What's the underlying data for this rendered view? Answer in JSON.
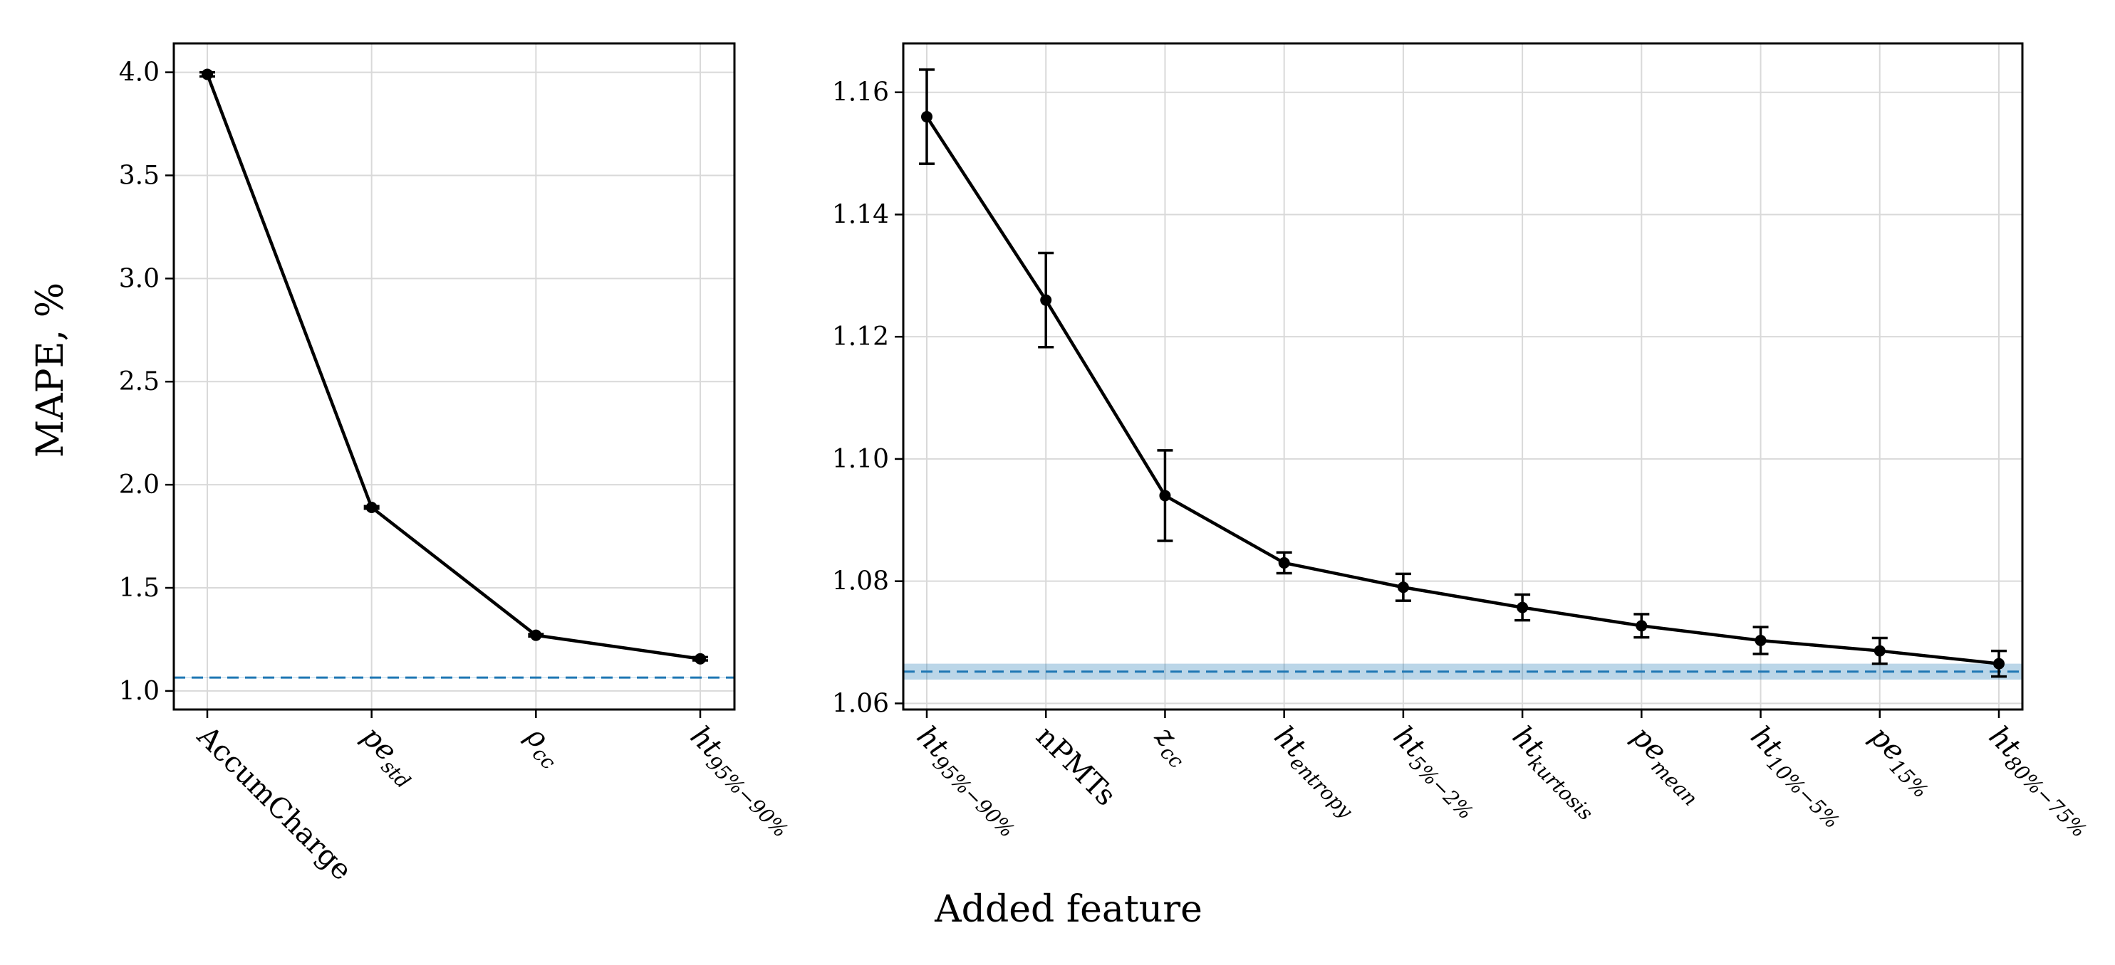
{
  "figure": {
    "ylabel": "MAPE, %",
    "xlabel": "Added feature"
  },
  "chart_data": [
    {
      "type": "line",
      "title": "",
      "ylabel": "MAPE, %",
      "xlabel": "",
      "ylim": [
        0.91,
        4.14
      ],
      "yticks": [
        "1.0",
        "1.5",
        "2.0",
        "2.5",
        "3.0",
        "3.5",
        "4.0"
      ],
      "grid": true,
      "categories": [
        {
          "label": "AccumCharge",
          "base": "AccumCharge",
          "sub": ""
        },
        {
          "label": "pe_std",
          "base": "pe",
          "sub": "std"
        },
        {
          "label": "ρ_cc",
          "base": "ρ",
          "sub": "cc"
        },
        {
          "label": "ht_95%−90%",
          "base": "ht",
          "sub": "95%−90%"
        }
      ],
      "series": [
        {
          "values": [
            3.99,
            1.89,
            1.27,
            1.156
          ],
          "errors": [
            0.01,
            0.006,
            0.006,
            0.008
          ],
          "color": "#000000"
        }
      ],
      "baseline": {
        "value": 1.065,
        "band": 0.0015,
        "color": "#1f77b4",
        "style": "dashed"
      }
    },
    {
      "type": "line",
      "title": "",
      "ylabel": "",
      "xlabel": "Added feature",
      "ylim": [
        1.059,
        1.168
      ],
      "yticks": [
        "1.06",
        "1.08",
        "1.10",
        "1.12",
        "1.14",
        "1.16"
      ],
      "grid": true,
      "categories": [
        {
          "label": "ht_95%−90%",
          "base": "ht",
          "sub": "95%−90%"
        },
        {
          "label": "nPMTs",
          "base": "nPMTs",
          "sub": ""
        },
        {
          "label": "z_cc",
          "base": "z",
          "sub": "cc"
        },
        {
          "label": "ht_entropy",
          "base": "ht",
          "sub": "entropy"
        },
        {
          "label": "ht_5%−2%",
          "base": "ht",
          "sub": "5%−2%"
        },
        {
          "label": "ht_kurtosis",
          "base": "ht",
          "sub": "kurtosis"
        },
        {
          "label": "pe_mean",
          "base": "pe",
          "sub": "mean"
        },
        {
          "label": "ht_10%−5%",
          "base": "ht",
          "sub": "10%−5%"
        },
        {
          "label": "pe_15%",
          "base": "pe",
          "sub": "15%"
        },
        {
          "label": "ht_80%−75%",
          "base": "ht",
          "sub": "80%−75%"
        }
      ],
      "series": [
        {
          "values": [
            1.156,
            1.126,
            1.094,
            1.083,
            1.079,
            1.0757,
            1.0727,
            1.0703,
            1.0686,
            1.0665
          ],
          "errors": [
            0.0077,
            0.0077,
            0.0074,
            0.0017,
            0.0022,
            0.0021,
            0.0019,
            0.0022,
            0.0021,
            0.0021
          ],
          "color": "#000000"
        }
      ],
      "baseline": {
        "value": 1.0652,
        "band": 0.0013,
        "color": "#1f77b4",
        "style": "dashed"
      }
    }
  ]
}
